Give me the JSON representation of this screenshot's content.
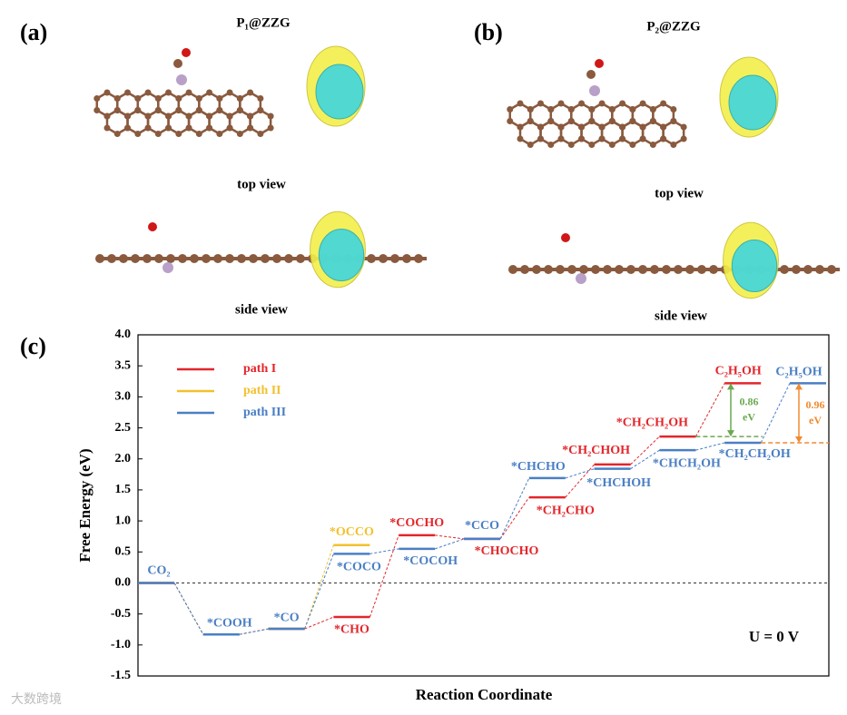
{
  "panels": [
    {
      "letter": "(a)",
      "title": "P₁@ZZG",
      "views": [
        "top view",
        "side view"
      ]
    },
    {
      "letter": "(b)",
      "title": "P₂@ZZG",
      "views": [
        "top view",
        "side view"
      ]
    }
  ],
  "watermark": "大数跨境",
  "chart_data": {
    "type": "energy_levels",
    "panel_letter": "(c)",
    "y_label": "Free Energy (eV)",
    "x_label": "Reaction Coordinate",
    "ylim": [
      -1.5,
      4.0
    ],
    "yticks": [
      {
        "value": 4.0,
        "label": "4.0"
      },
      3.5,
      {
        "value": 3.0,
        "label": "3.0"
      },
      2.5,
      {
        "value": 2.0,
        "label": "2.0"
      },
      1.5,
      {
        "value": 1.0,
        "label": "1.0"
      },
      0.5,
      {
        "value": 0.0,
        "label": "0.0"
      },
      -0.5,
      {
        "value": -1.0,
        "label": "-1.0"
      },
      -1.5
    ],
    "zero_line": true,
    "legend": "upper left",
    "series": [
      {
        "name": "path I",
        "color": "#e3262b",
        "values": [
          0.0,
          -0.83,
          -0.74,
          -0.55,
          0.77,
          0.71,
          1.38,
          1.91,
          2.36,
          3.22,
          null
        ],
        "point_labels": [
          null,
          null,
          null,
          "*CHO",
          "*COCHO",
          "*CHOCHO",
          "*CH₂CHO",
          "*CH₂CHOH",
          "*CH₂CH₂OH",
          "C₂H₅OH",
          null
        ]
      },
      {
        "name": "path II",
        "color": "#f2c12e",
        "values": [
          0.0,
          -0.83,
          -0.74,
          0.61,
          null,
          null,
          null,
          null,
          null,
          null,
          null
        ],
        "point_labels": [
          null,
          null,
          null,
          "*OCCO",
          null,
          null,
          null,
          null,
          null,
          null,
          null
        ]
      },
      {
        "name": "path III",
        "color": "#4a7fc4",
        "values": [
          0.0,
          -0.83,
          -0.74,
          0.47,
          0.55,
          0.71,
          1.69,
          1.84,
          2.14,
          2.26,
          3.22
        ],
        "point_labels": [
          "CO₂",
          "*COOH",
          "*CO",
          "*COCO",
          "*COCOH",
          "*CCO",
          "*CHCHO",
          "*CHCHOH",
          "*CHCH₂OH",
          "*CH₂CH₂OH",
          "C₂H₅OH"
        ]
      }
    ],
    "gaps": [
      {
        "label_lines": [
          "0.86",
          "eV"
        ],
        "from": 2.36,
        "to": 3.22,
        "color": "#6aa84f"
      },
      {
        "label_lines": [
          "0.96",
          "eV"
        ],
        "from": 2.26,
        "to": 3.22,
        "color": "#f08a30"
      }
    ],
    "annotation": "U = 0 V"
  }
}
